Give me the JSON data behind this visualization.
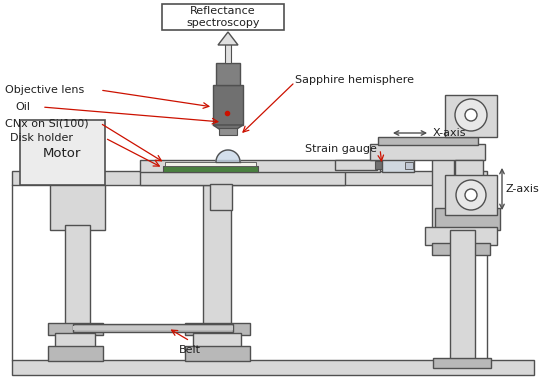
{
  "line_color": "#505050",
  "light_gray": "#d8d8d8",
  "mid_gray": "#b8b8b8",
  "dark_gray": "#888888",
  "green_fill": "#4a8040",
  "red_arrow": "#cc1100",
  "label_color": "#202020",
  "white": "#ffffff",
  "obj_gray": "#707070",
  "labels": {
    "reflectance": "Reflectance\nspectroscopy",
    "objective": "Objective lens",
    "oil": "Oil",
    "cnx": "CNx on Si(100)",
    "disk_holder": "Disk holder",
    "motor": "Motor",
    "belt": "Belt",
    "strain_gauge": "Strain gauge",
    "sapphire": "Sapphire hemisphere",
    "x_axis": "X-axis",
    "z_axis": "Z-axis"
  }
}
